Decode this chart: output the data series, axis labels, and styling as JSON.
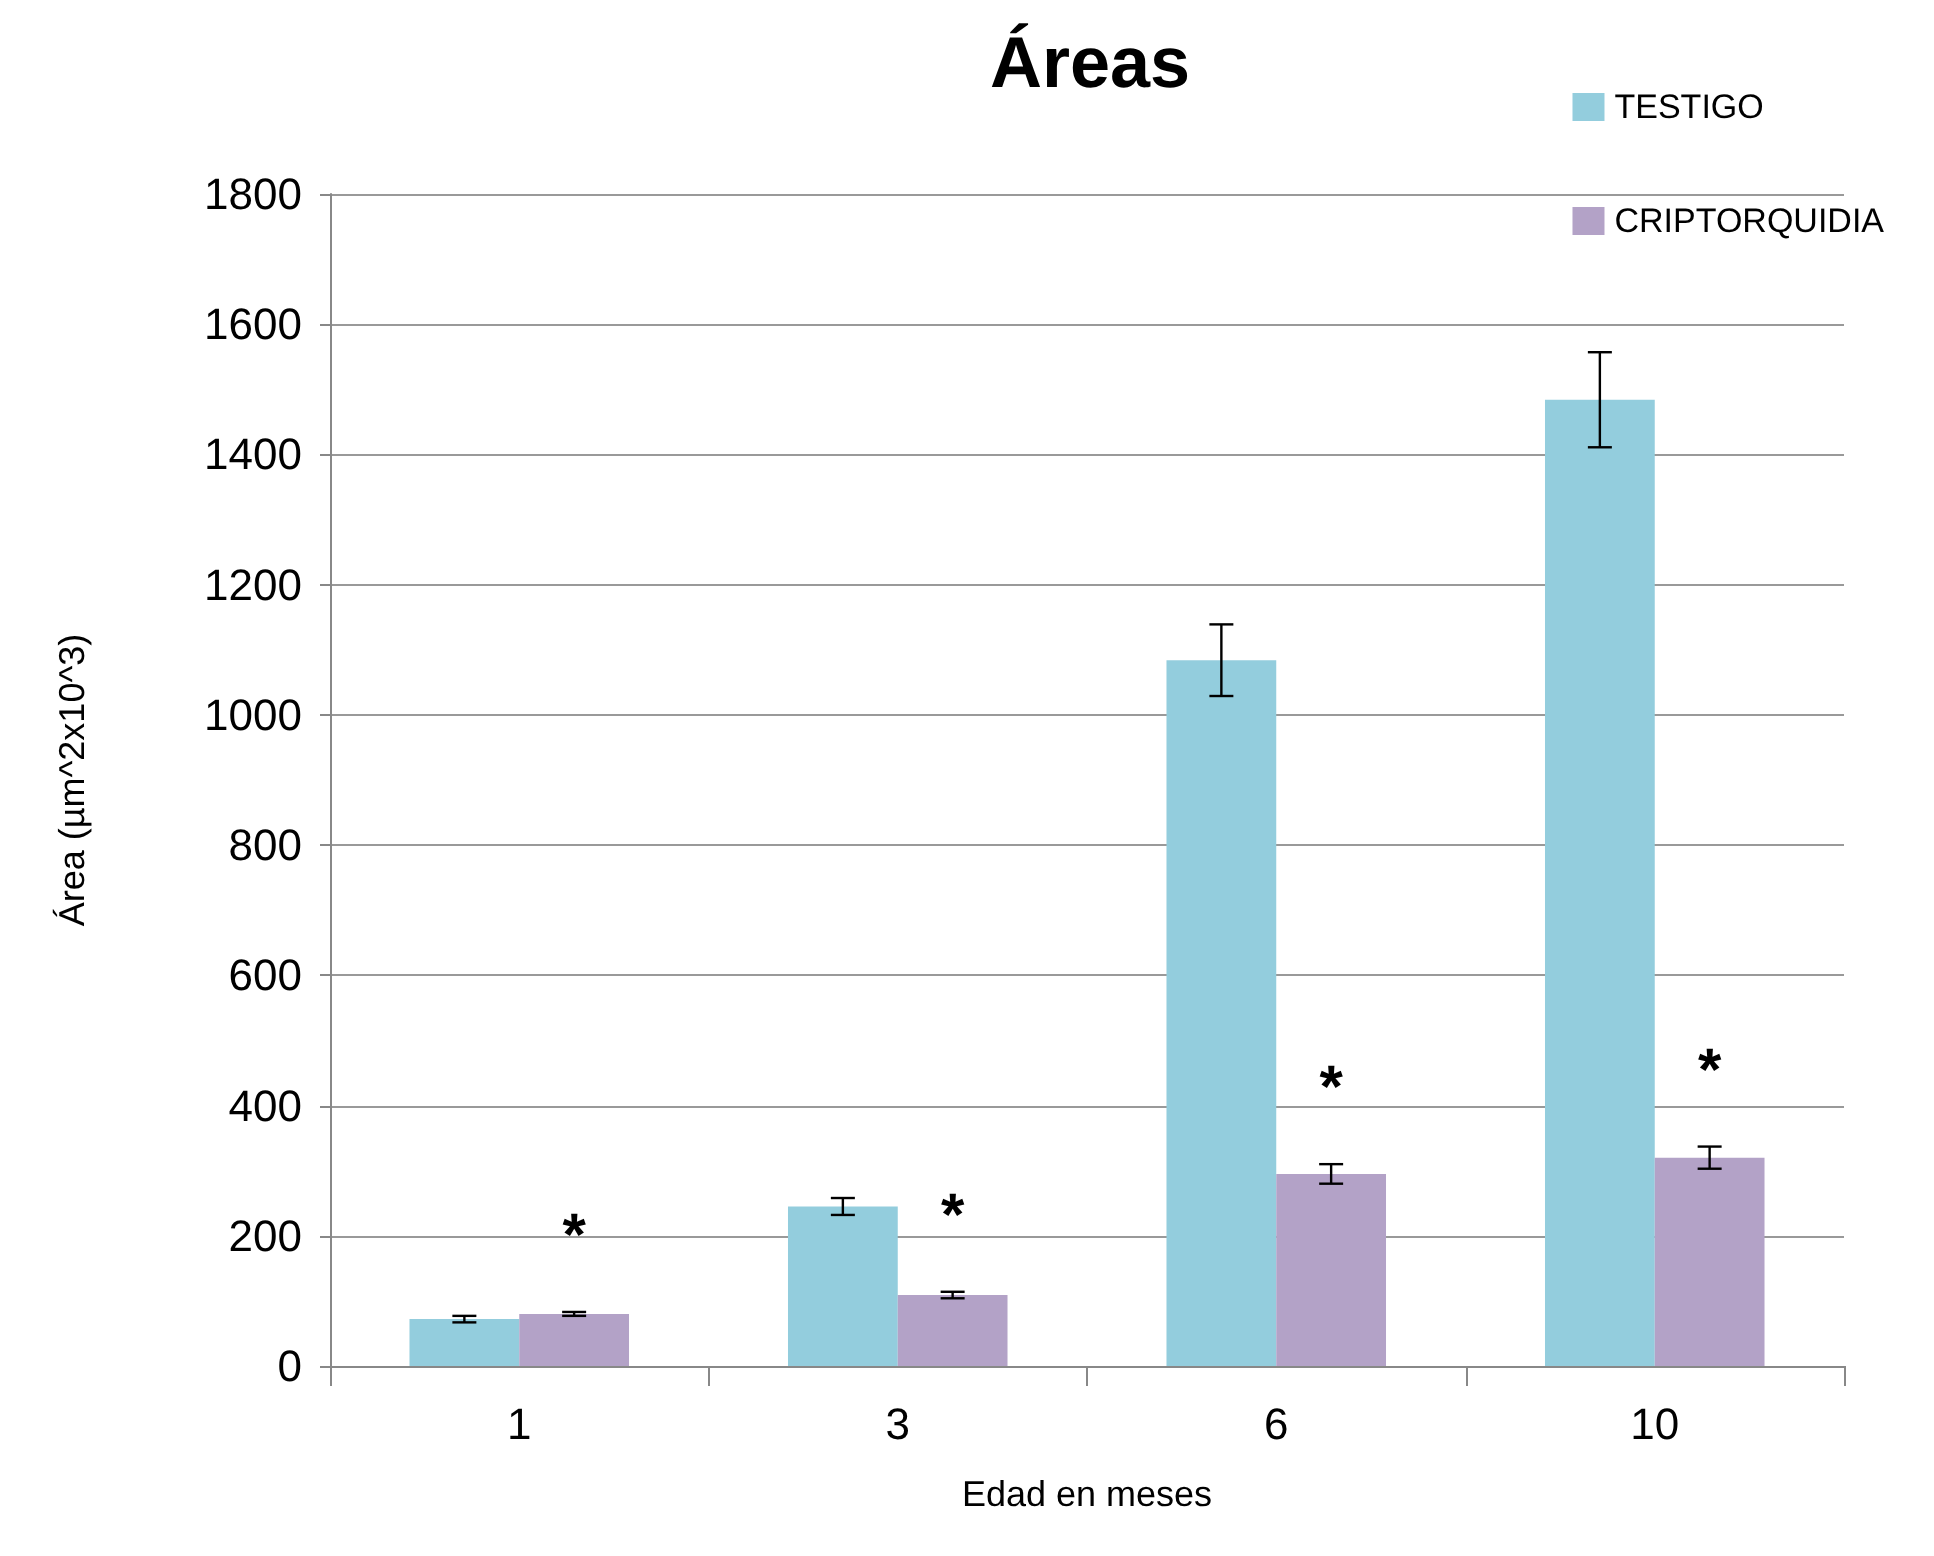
{
  "chart_data": {
    "type": "bar",
    "title": "Áreas",
    "xlabel": "Edad en meses",
    "ylabel": "Área (µm^2x10^3)",
    "categories": [
      "1",
      "3",
      "6",
      "10"
    ],
    "series": [
      {
        "name": "TESTIGO",
        "color": "#93cddd",
        "values": [
          72,
          245,
          1084,
          1484
        ],
        "errors": [
          5,
          13,
          55,
          73
        ]
      },
      {
        "name": "CRIPTORQUIDIA",
        "color": "#b3a2c7",
        "values": [
          80,
          109,
          295,
          320
        ],
        "errors": [
          3,
          5,
          15,
          17
        ]
      }
    ],
    "annotations": [
      "*",
      "*",
      "*",
      "*"
    ],
    "ylim": [
      0,
      1800
    ],
    "yticks": [
      0,
      200,
      400,
      600,
      800,
      1000,
      1200,
      1400,
      1600,
      1800
    ],
    "grid": "y",
    "legend": "top right"
  }
}
